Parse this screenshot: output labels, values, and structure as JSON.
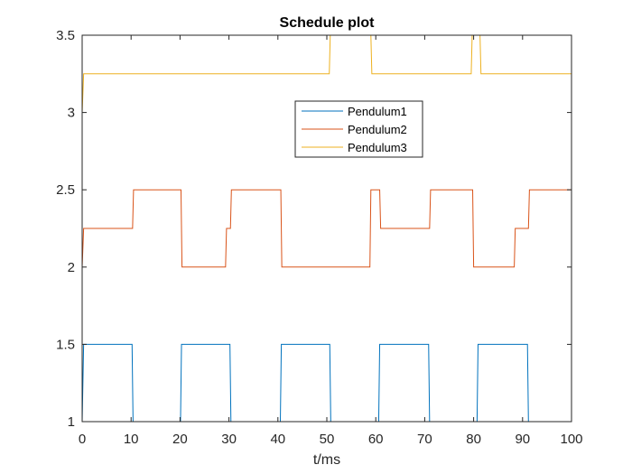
{
  "chart_data": {
    "type": "line",
    "title": "Schedule plot",
    "xlabel": "t/ms",
    "ylabel": "",
    "xlim": [
      0,
      100
    ],
    "ylim": [
      1,
      3.5
    ],
    "xticks": [
      0,
      10,
      20,
      30,
      40,
      50,
      60,
      70,
      80,
      90,
      100
    ],
    "yticks": [
      1,
      1.5,
      2,
      2.5,
      3,
      3.5
    ],
    "xtick_labels": [
      "0",
      "10",
      "20",
      "30",
      "40",
      "50",
      "60",
      "70",
      "80",
      "90",
      "100"
    ],
    "ytick_labels": [
      "1",
      "1.5",
      "2",
      "2.5",
      "3",
      "3.5"
    ],
    "grid": false,
    "legend_position": "top-center",
    "series": [
      {
        "name": "Pendulum1",
        "color": "#0072BD",
        "x": [
          0,
          0.3,
          10.2,
          10.4,
          20.1,
          20.3,
          30.2,
          30.4,
          40.5,
          40.7,
          50.6,
          50.8,
          60.6,
          60.8,
          70.8,
          71.0,
          80.7,
          80.9,
          91.0,
          91.2,
          100
        ],
        "y": [
          1,
          1.5,
          1.5,
          1,
          1,
          1.5,
          1.5,
          1,
          1,
          1.5,
          1.5,
          1,
          1,
          1.5,
          1.5,
          1,
          1,
          1.5,
          1.5,
          1,
          1
        ]
      },
      {
        "name": "Pendulum2",
        "color": "#D95319",
        "x": [
          0,
          0.3,
          10.3,
          10.5,
          20.2,
          20.4,
          29.3,
          29.5,
          30.3,
          30.5,
          40.6,
          40.8,
          58.8,
          59.0,
          60.8,
          61.0,
          71.0,
          71.2,
          79.8,
          80.0,
          88.3,
          88.5,
          91.2,
          91.4,
          100
        ],
        "y": [
          2,
          2.25,
          2.25,
          2.5,
          2.5,
          2,
          2,
          2.25,
          2.25,
          2.5,
          2.5,
          2,
          2,
          2.5,
          2.5,
          2.25,
          2.25,
          2.5,
          2.5,
          2,
          2,
          2.25,
          2.25,
          2.5,
          2.5
        ]
      },
      {
        "name": "Pendulum3",
        "color": "#EDB120",
        "x": [
          0,
          0.3,
          50.5,
          50.7,
          59.0,
          59.2,
          79.5,
          79.7,
          81.3,
          81.5,
          100
        ],
        "y": [
          3,
          3.25,
          3.25,
          3.5,
          3.5,
          3.25,
          3.25,
          3.5,
          3.5,
          3.25,
          3.25
        ]
      }
    ]
  }
}
